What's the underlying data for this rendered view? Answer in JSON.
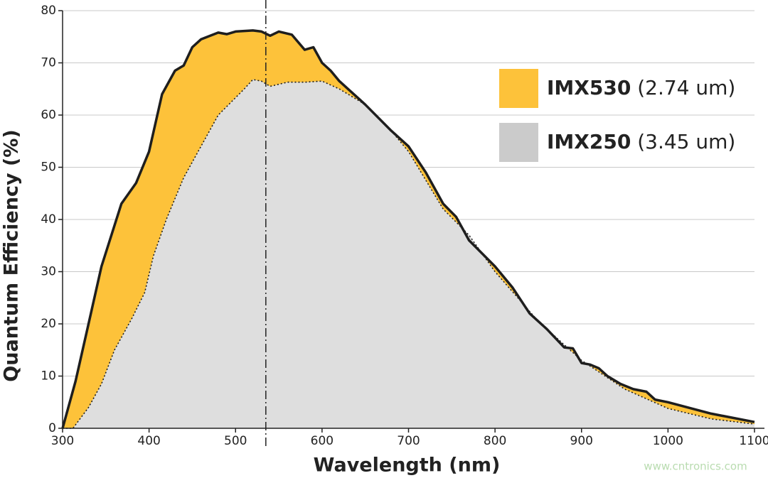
{
  "chart_data": {
    "type": "area",
    "x_label": "Wavelength (nm)",
    "y_label": "Quantum Efficiency (%)",
    "xlim": [
      300,
      1100
    ],
    "ylim": [
      0,
      80
    ],
    "xticks": [
      300,
      400,
      500,
      600,
      700,
      800,
      900,
      1000,
      1100
    ],
    "yticks": [
      0,
      10,
      20,
      30,
      40,
      50,
      60,
      70,
      80
    ],
    "grid": true,
    "reference_line_x": 535,
    "watermark": "www.cntronics.com",
    "series": [
      {
        "name": "IMX530 (2.74 um)",
        "color": "#fdc23a",
        "line_style": "solid",
        "x": [
          300,
          315,
          330,
          345,
          368,
          385,
          400,
          415,
          430,
          440,
          450,
          460,
          480,
          490,
          500,
          520,
          530,
          540,
          550,
          565,
          580,
          590,
          600,
          610,
          620,
          650,
          680,
          700,
          720,
          740,
          755,
          770,
          800,
          820,
          840,
          860,
          880,
          890,
          900,
          910,
          920,
          930,
          945,
          960,
          975,
          985,
          1000,
          1050,
          1100
        ],
        "values": [
          0,
          9,
          20,
          31,
          43,
          47,
          53,
          64,
          68.5,
          69.5,
          73,
          74.5,
          75.8,
          75.5,
          76,
          76.2,
          76,
          75.2,
          76,
          75.4,
          72.5,
          73,
          70,
          68.5,
          66.5,
          62,
          57,
          54,
          49,
          43,
          40.5,
          36,
          31,
          27,
          22,
          19,
          15.5,
          15.3,
          12.5,
          12.2,
          11.5,
          10,
          8.5,
          7.5,
          7,
          5.5,
          5,
          2.8,
          1.2
        ]
      },
      {
        "name": "IMX250 (3.45 um)",
        "color": "#dedede",
        "legend_color": "#cbcbcb",
        "line_style": "dotted",
        "x": [
          300,
          312,
          330,
          345,
          360,
          380,
          395,
          405,
          420,
          440,
          460,
          480,
          495,
          510,
          520,
          530,
          540,
          560,
          580,
          600,
          620,
          650,
          680,
          700,
          740,
          770,
          800,
          850,
          900,
          950,
          1000,
          1050,
          1100
        ],
        "values": [
          0,
          0,
          4,
          8.5,
          15,
          21,
          26,
          33,
          40,
          48,
          54,
          60,
          62.5,
          65,
          66.8,
          66.5,
          65.5,
          66.3,
          66.3,
          66.5,
          65,
          62,
          57,
          53,
          42,
          37,
          30,
          20.5,
          13,
          7.5,
          3.8,
          1.8,
          0.8
        ]
      }
    ]
  }
}
